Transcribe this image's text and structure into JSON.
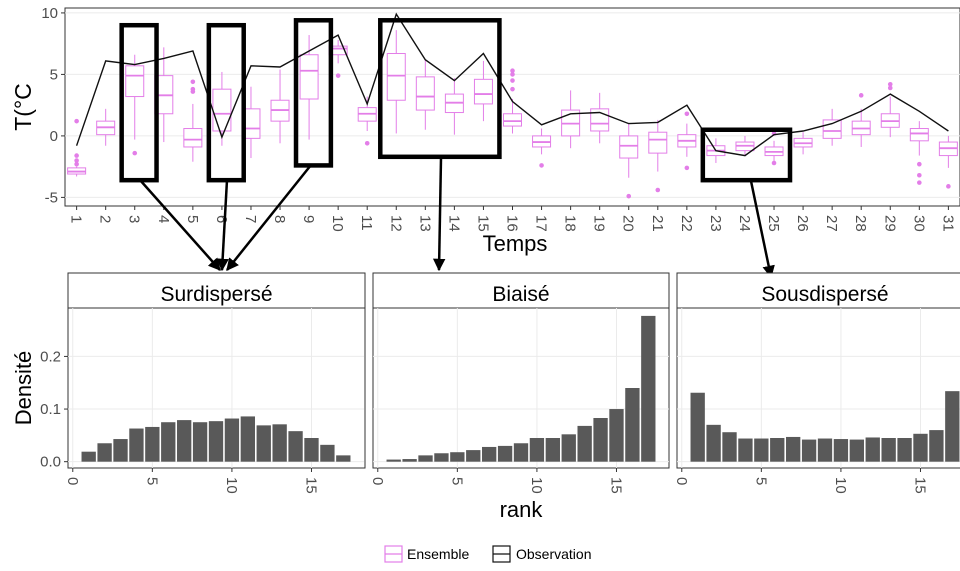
{
  "colors": {
    "ensemble": "#e37ee8",
    "observation": "#111111",
    "bars": "#595959",
    "strip": "#ffffff",
    "frame": "#333333",
    "grid": "#ebebeb"
  },
  "chart_data": [
    {
      "type": "boxplot",
      "xlabel": "Temps",
      "ylabel": "T(°C",
      "xlim": [
        0.6,
        31.4
      ],
      "ylim": [
        -5.7,
        10.4
      ],
      "x_ticks": [
        "1",
        "2",
        "3",
        "4",
        "5",
        "6",
        "7",
        "8",
        "9",
        "10",
        "11",
        "12",
        "13",
        "14",
        "15",
        "16",
        "17",
        "18",
        "19",
        "20",
        "21",
        "22",
        "23",
        "24",
        "25",
        "26",
        "27",
        "28",
        "29",
        "30",
        "31"
      ],
      "y_ticks": [
        -5,
        0,
        5,
        10
      ],
      "series": [
        {
          "name": "Ensemble",
          "boxes": [
            {
              "x": 1,
              "q1": -3.1,
              "med": -2.9,
              "q3": -2.6,
              "lo": -3.3,
              "hi": -2.5,
              "out": [
                1.2,
                -1.6,
                -2.0,
                -2.3
              ]
            },
            {
              "x": 2,
              "q1": 0.1,
              "med": 0.7,
              "q3": 1.2,
              "lo": -0.8,
              "hi": 2.2,
              "out": []
            },
            {
              "x": 3,
              "q1": 3.2,
              "med": 4.9,
              "q3": 5.7,
              "lo": -0.3,
              "hi": 6.6,
              "out": [
                -1.4
              ]
            },
            {
              "x": 4,
              "q1": 1.8,
              "med": 3.3,
              "q3": 4.9,
              "lo": -0.5,
              "hi": 7.2,
              "out": []
            },
            {
              "x": 5,
              "q1": -0.9,
              "med": -0.3,
              "q3": 0.6,
              "lo": -2.1,
              "hi": 2.6,
              "out": [
                4.4,
                3.8,
                3.6
              ]
            },
            {
              "x": 6,
              "q1": 0.4,
              "med": 1.8,
              "q3": 3.8,
              "lo": -0.8,
              "hi": 5.2,
              "out": []
            },
            {
              "x": 7,
              "q1": -0.2,
              "med": 0.6,
              "q3": 2.2,
              "lo": -1.8,
              "hi": 4.0,
              "out": []
            },
            {
              "x": 8,
              "q1": 1.2,
              "med": 2.1,
              "q3": 2.9,
              "lo": -0.6,
              "hi": 5.4,
              "out": []
            },
            {
              "x": 9,
              "q1": 3.0,
              "med": 5.3,
              "q3": 6.6,
              "lo": -0.3,
              "hi": 8.2,
              "out": []
            },
            {
              "x": 10,
              "q1": 6.6,
              "med": 7.1,
              "q3": 7.3,
              "lo": 5.9,
              "hi": 7.8,
              "out": [
                4.9
              ]
            },
            {
              "x": 11,
              "q1": 1.2,
              "med": 1.8,
              "q3": 2.3,
              "lo": 0.4,
              "hi": 3.2,
              "out": [
                -0.6
              ]
            },
            {
              "x": 12,
              "q1": 2.9,
              "med": 4.9,
              "q3": 6.7,
              "lo": 0.2,
              "hi": 8.6,
              "out": []
            },
            {
              "x": 13,
              "q1": 2.1,
              "med": 3.2,
              "q3": 4.8,
              "lo": 0.5,
              "hi": 6.2,
              "out": []
            },
            {
              "x": 14,
              "q1": 1.9,
              "med": 2.7,
              "q3": 3.4,
              "lo": 0.1,
              "hi": 4.7,
              "out": []
            },
            {
              "x": 15,
              "q1": 2.6,
              "med": 3.4,
              "q3": 4.6,
              "lo": 1.2,
              "hi": 6.1,
              "out": []
            },
            {
              "x": 16,
              "q1": 0.8,
              "med": 1.2,
              "q3": 1.8,
              "lo": 0.2,
              "hi": 3.0,
              "out": [
                5.3,
                5.0,
                4.5,
                3.8
              ]
            },
            {
              "x": 17,
              "q1": -0.9,
              "med": -0.5,
              "q3": 0.0,
              "lo": -1.5,
              "hi": 0.6,
              "out": [
                -2.4
              ]
            },
            {
              "x": 18,
              "q1": 0.0,
              "med": 1.0,
              "q3": 2.1,
              "lo": -1.0,
              "hi": 3.7,
              "out": []
            },
            {
              "x": 19,
              "q1": 0.4,
              "med": 1.0,
              "q3": 2.2,
              "lo": -0.6,
              "hi": 3.5,
              "out": []
            },
            {
              "x": 20,
              "q1": -1.8,
              "med": -0.8,
              "q3": 0.0,
              "lo": -3.4,
              "hi": 1.0,
              "out": [
                -4.9
              ]
            },
            {
              "x": 21,
              "q1": -1.4,
              "med": -0.3,
              "q3": 0.3,
              "lo": -2.9,
              "hi": 1.3,
              "out": [
                -4.4
              ]
            },
            {
              "x": 22,
              "q1": -0.9,
              "med": -0.4,
              "q3": 0.1,
              "lo": -1.7,
              "hi": 1.0,
              "out": [
                -2.6,
                1.8
              ]
            },
            {
              "x": 23,
              "q1": -1.6,
              "med": -1.2,
              "q3": -0.8,
              "lo": -2.2,
              "hi": -0.2,
              "out": []
            },
            {
              "x": 24,
              "q1": -1.2,
              "med": -0.8,
              "q3": -0.5,
              "lo": -1.6,
              "hi": 0.0,
              "out": []
            },
            {
              "x": 25,
              "q1": -1.6,
              "med": -1.3,
              "q3": -0.9,
              "lo": -2.0,
              "hi": -0.4,
              "out": [
                -2.2,
                0.2
              ]
            },
            {
              "x": 26,
              "q1": -0.9,
              "med": -0.6,
              "q3": -0.2,
              "lo": -1.5,
              "hi": 0.3,
              "out": []
            },
            {
              "x": 27,
              "q1": -0.2,
              "med": 0.4,
              "q3": 1.3,
              "lo": -0.8,
              "hi": 2.2,
              "out": []
            },
            {
              "x": 28,
              "q1": 0.1,
              "med": 0.6,
              "q3": 1.2,
              "lo": -0.9,
              "hi": 2.2,
              "out": [
                3.3
              ]
            },
            {
              "x": 29,
              "q1": 0.7,
              "med": 1.2,
              "q3": 1.8,
              "lo": -0.1,
              "hi": 3.2,
              "out": [
                4.2,
                3.9
              ]
            },
            {
              "x": 30,
              "q1": -0.4,
              "med": 0.2,
              "q3": 0.6,
              "lo": -1.6,
              "hi": 1.2,
              "out": [
                -2.3,
                -3.2,
                -3.8
              ]
            },
            {
              "x": 31,
              "q1": -1.6,
              "med": -1.0,
              "q3": -0.5,
              "lo": -2.6,
              "hi": 0.0,
              "out": [
                -4.1
              ]
            }
          ]
        },
        {
          "name": "Observation",
          "x": [
            1,
            2,
            3,
            4,
            5,
            6,
            7,
            8,
            9,
            10,
            11,
            12,
            13,
            14,
            15,
            16,
            17,
            18,
            19,
            20,
            21,
            22,
            23,
            24,
            25,
            26,
            27,
            28,
            29,
            30,
            31
          ],
          "values": [
            -0.8,
            6.1,
            5.8,
            6.3,
            6.9,
            -0.1,
            5.7,
            5.6,
            6.9,
            8.2,
            2.6,
            9.9,
            6.2,
            4.5,
            6.7,
            2.8,
            0.9,
            1.8,
            1.9,
            1.0,
            1.1,
            2.5,
            -1.2,
            -1.6,
            0.1,
            0.4,
            1.0,
            2.0,
            3.4,
            2.0,
            0.4
          ]
        }
      ],
      "highlights": [
        {
          "x0": 2.55,
          "x1": 3.75,
          "y0": -3.6,
          "y1": 9.0
        },
        {
          "x0": 5.55,
          "x1": 6.75,
          "y0": -3.6,
          "y1": 9.0
        },
        {
          "x0": 8.55,
          "x1": 9.75,
          "y0": -2.4,
          "y1": 9.4
        },
        {
          "x0": 11.45,
          "x1": 15.55,
          "y0": -1.7,
          "y1": 9.4
        },
        {
          "x0": 22.55,
          "x1": 25.55,
          "y0": -3.6,
          "y1": 0.5
        }
      ]
    },
    {
      "type": "bar",
      "facet": "Surdispersé",
      "xlabel": "rank",
      "ylabel": "Densité",
      "xlim": [
        -0.3,
        18.3
      ],
      "ylim": [
        -0.012,
        0.292
      ],
      "x_ticks": [
        0,
        5,
        10,
        15
      ],
      "y_ticks": [
        "0.0",
        "0.1",
        "0.2"
      ],
      "x": [
        1,
        2,
        3,
        4,
        5,
        6,
        7,
        8,
        9,
        10,
        11,
        12,
        13,
        14,
        15,
        16,
        17
      ],
      "values": [
        0.019,
        0.035,
        0.043,
        0.063,
        0.066,
        0.075,
        0.079,
        0.075,
        0.077,
        0.082,
        0.086,
        0.069,
        0.071,
        0.058,
        0.045,
        0.032,
        0.012
      ]
    },
    {
      "type": "bar",
      "facet": "Biaisé",
      "xlabel": "rank",
      "ylabel": "",
      "xlim": [
        -0.3,
        18.3
      ],
      "ylim": [
        -0.012,
        0.292
      ],
      "x_ticks": [
        0,
        5,
        10,
        15
      ],
      "y_ticks": [],
      "x": [
        1,
        2,
        3,
        4,
        5,
        6,
        7,
        8,
        9,
        10,
        11,
        12,
        13,
        14,
        15,
        16,
        17
      ],
      "values": [
        0.004,
        0.005,
        0.012,
        0.016,
        0.018,
        0.022,
        0.028,
        0.03,
        0.035,
        0.045,
        0.045,
        0.052,
        0.068,
        0.083,
        0.1,
        0.14,
        0.277
      ]
    },
    {
      "type": "bar",
      "facet": "Sousdispersé",
      "xlabel": "",
      "ylabel": "",
      "xlim": [
        -0.3,
        18.3
      ],
      "ylim": [
        -0.012,
        0.292
      ],
      "x_ticks": [
        0,
        5,
        10,
        15
      ],
      "y_ticks": [],
      "x": [
        1,
        2,
        3,
        4,
        5,
        6,
        7,
        8,
        9,
        10,
        11,
        12,
        13,
        14,
        15,
        16,
        17
      ],
      "values": [
        0.131,
        0.07,
        0.056,
        0.044,
        0.044,
        0.045,
        0.047,
        0.042,
        0.044,
        0.043,
        0.042,
        0.046,
        0.045,
        0.045,
        0.053,
        0.06,
        0.134
      ]
    }
  ],
  "legend": {
    "position": "bottom",
    "items": [
      "Ensemble",
      "Observation"
    ]
  }
}
